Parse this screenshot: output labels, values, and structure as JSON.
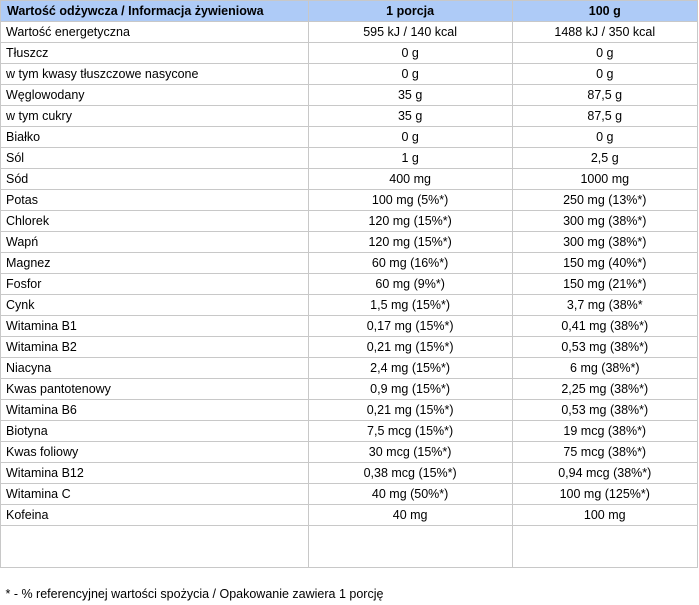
{
  "header": {
    "col_name": "Wartość odżywcza / Informacja żywieniowa",
    "col_portion": "1 porcja",
    "col_100g": "100 g"
  },
  "rows": [
    {
      "name": "Wartość energetyczna",
      "portion": "595 kJ / 140 kcal",
      "per100": "1488 kJ / 350 kcal"
    },
    {
      "name": "Tłuszcz",
      "portion": "0 g",
      "per100": "0 g"
    },
    {
      "name": "w tym kwasy tłuszczowe nasycone",
      "portion": "0 g",
      "per100": "0 g"
    },
    {
      "name": "Węglowodany",
      "portion": "35 g",
      "per100": "87,5 g"
    },
    {
      "name": "w tym cukry",
      "portion": "35 g",
      "per100": "87,5 g"
    },
    {
      "name": "Białko",
      "portion": "0 g",
      "per100": "0 g"
    },
    {
      "name": "Sól",
      "portion": "1 g",
      "per100": "2,5 g"
    },
    {
      "name": "Sód",
      "portion": "400 mg",
      "per100": "1000 mg"
    },
    {
      "name": "Potas",
      "portion": "100 mg (5%*)",
      "per100": "250 mg (13%*)"
    },
    {
      "name": "Chlorek",
      "portion": "120 mg (15%*)",
      "per100": "300 mg (38%*)"
    },
    {
      "name": "Wapń",
      "portion": "120 mg (15%*)",
      "per100": "300 mg (38%*)"
    },
    {
      "name": "Magnez",
      "portion": "60 mg (16%*)",
      "per100": "150 mg (40%*)"
    },
    {
      "name": "Fosfor",
      "portion": "60 mg (9%*)",
      "per100": "150 mg (21%*)"
    },
    {
      "name": "Cynk",
      "portion": "1,5 mg (15%*)",
      "per100": "3,7 mg (38%*"
    },
    {
      "name": "Witamina B1",
      "portion": "0,17 mg (15%*)",
      "per100": "0,41 mg (38%*)"
    },
    {
      "name": "Witamina B2",
      "portion": "0,21 mg (15%*)",
      "per100": "0,53 mg (38%*)"
    },
    {
      "name": "Niacyna",
      "portion": "2,4 mg (15%*)",
      "per100": "6 mg (38%*)"
    },
    {
      "name": "Kwas pantotenowy",
      "portion": "0,9 mg (15%*)",
      "per100": "2,25 mg (38%*)"
    },
    {
      "name": "Witamina B6",
      "portion": "0,21 mg (15%*)",
      "per100": "0,53 mg (38%*)"
    },
    {
      "name": "Biotyna",
      "portion": "7,5 mcg (15%*)",
      "per100": "19 mcg (38%*)"
    },
    {
      "name": "Kwas foliowy",
      "portion": "30 mcg (15%*)",
      "per100": "75 mcg (38%*)"
    },
    {
      "name": "Witamina B12",
      "portion": "0,38 mcg (15%*)",
      "per100": "0,94 mcg (38%*)"
    },
    {
      "name": "Witamina C",
      "portion": "40 mg (50%*)",
      "per100": "100 mg (125%*)"
    },
    {
      "name": "Kofeina",
      "portion": "40 mg",
      "per100": "100 mg"
    }
  ],
  "footnote": "* - % referencyjnej wartości spożycia / Opakowanie zawiera 1 porcję",
  "colors": {
    "header_bg": "#aecbf7",
    "border": "#c8c8c8"
  }
}
